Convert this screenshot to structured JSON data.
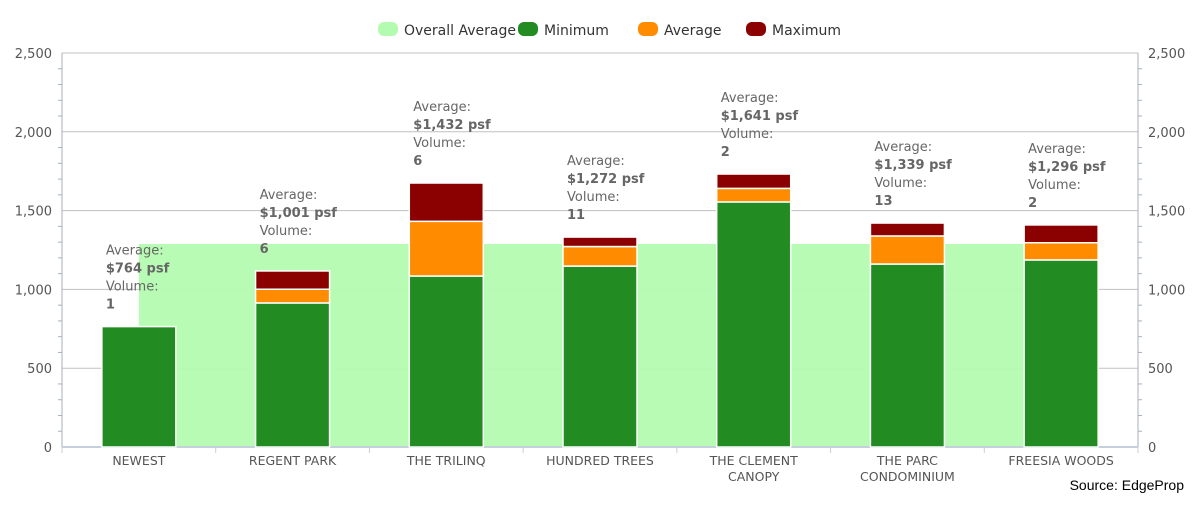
{
  "chart_data": {
    "type": "bar",
    "stacked": true,
    "categories": [
      [
        "NEWEST"
      ],
      [
        "REGENT PARK"
      ],
      [
        "THE TRILINQ"
      ],
      [
        "HUNDRED TREES"
      ],
      [
        "THE CLEMENT",
        "CANOPY"
      ],
      [
        "THE PARC",
        "CONDOMINIUM"
      ],
      [
        "FREESIA WOODS"
      ]
    ],
    "series": [
      {
        "name": "Overall Average",
        "type": "area",
        "color": "#b3fbb0",
        "value": 1288
      },
      {
        "name": "Minimum",
        "color": "#228b22",
        "values": [
          764,
          914,
          1085,
          1148,
          1555,
          1161,
          1187
        ]
      },
      {
        "name": "Average",
        "color": "#ff8c00",
        "values": [
          764,
          1001,
          1432,
          1272,
          1641,
          1339,
          1296
        ]
      },
      {
        "name": "Maximum",
        "color": "#8b0000",
        "values": [
          764,
          1117,
          1675,
          1332,
          1732,
          1421,
          1409
        ]
      }
    ],
    "annotations": [
      {
        "avg_label": "Average:",
        "avg_value": "$764 psf",
        "vol_label": "Volume:",
        "volume": "1"
      },
      {
        "avg_label": "Average:",
        "avg_value": "$1,001 psf",
        "vol_label": "Volume:",
        "volume": "6"
      },
      {
        "avg_label": "Average:",
        "avg_value": "$1,432 psf",
        "vol_label": "Volume:",
        "volume": "6"
      },
      {
        "avg_label": "Average:",
        "avg_value": "$1,272 psf",
        "vol_label": "Volume:",
        "volume": "11"
      },
      {
        "avg_label": "Average:",
        "avg_value": "$1,641 psf",
        "vol_label": "Volume:",
        "volume": "2"
      },
      {
        "avg_label": "Average:",
        "avg_value": "$1,339 psf",
        "vol_label": "Volume:",
        "volume": "13"
      },
      {
        "avg_label": "Average:",
        "avg_value": "$1,296 psf",
        "vol_label": "Volume:",
        "volume": "2"
      }
    ],
    "yticks": [
      "0",
      "500",
      "1,000",
      "1,500",
      "2,000",
      "2,500"
    ],
    "ylim": [
      0,
      2500
    ],
    "legend_position": "top-center",
    "grid": true
  },
  "source": "Source: EdgeProp"
}
